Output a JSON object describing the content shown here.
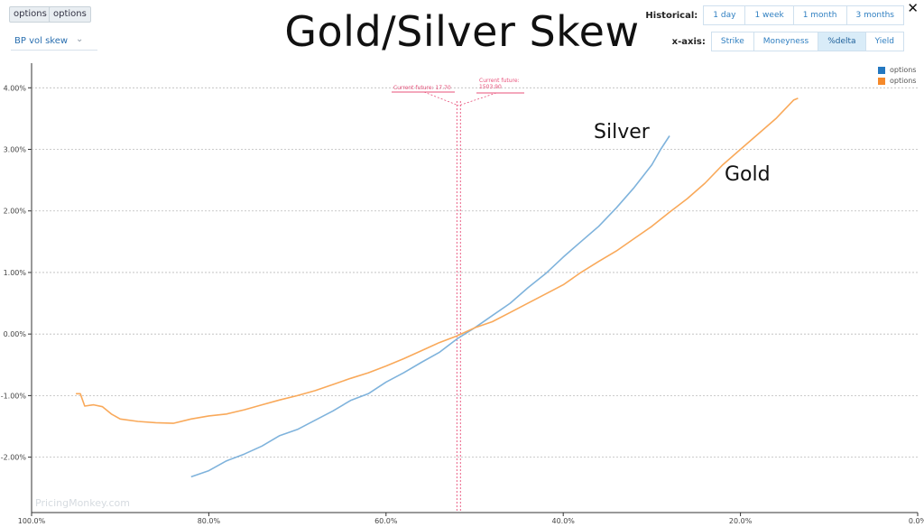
{
  "toolbar": {
    "btn1": "options",
    "btn2": "options",
    "select_value": "BP vol skew"
  },
  "title": "Gold/Silver Skew",
  "historical": {
    "label": "Historical:",
    "options": [
      "1 day",
      "1 week",
      "1 month",
      "3 months"
    ]
  },
  "xaxis_toggle": {
    "label": "x-axis:",
    "options": [
      "Strike",
      "Moneyness",
      "%delta",
      "Yield"
    ],
    "active": "%delta"
  },
  "close": "✕",
  "watermark": "PricingMonkey.com",
  "annotations": {
    "silver": "Silver",
    "gold": "Gold"
  },
  "markers": [
    {
      "label": "Current future: 17.70"
    },
    {
      "label": "Current future: 1503.90"
    }
  ],
  "colors": {
    "series1": "#7fb3dc",
    "series2": "#f9a95a",
    "legend1": "#2478c0",
    "legend2": "#f5892a",
    "marker": "#e8507a"
  },
  "chart_data": {
    "type": "line",
    "title": "Gold/Silver Skew",
    "xlabel": "",
    "ylabel": "",
    "xlim": [
      100,
      0
    ],
    "ylim": [
      -2.9,
      4.4
    ],
    "x_ticks": [
      "100.0%",
      "80.0%",
      "60.0%",
      "40.0%",
      "20.0%",
      "0.0%"
    ],
    "y_ticks": [
      "4.00%",
      "3.00%",
      "2.00%",
      "1.00%",
      "0.00%",
      "-1.00%",
      "-2.00%"
    ],
    "grid": true,
    "legend_position": "top-right",
    "vertical_markers": [
      52.0,
      51.6
    ],
    "series": [
      {
        "name": "options",
        "annotation": "Silver",
        "points": [
          [
            82,
            -2.32
          ],
          [
            80,
            -2.22
          ],
          [
            78,
            -2.06
          ],
          [
            76,
            -1.95
          ],
          [
            74,
            -1.82
          ],
          [
            72,
            -1.65
          ],
          [
            70,
            -1.55
          ],
          [
            68,
            -1.4
          ],
          [
            66,
            -1.25
          ],
          [
            64,
            -1.08
          ],
          [
            62,
            -0.97
          ],
          [
            60,
            -0.78
          ],
          [
            58,
            -0.63
          ],
          [
            56,
            -0.46
          ],
          [
            54,
            -0.3
          ],
          [
            52,
            -0.08
          ],
          [
            50,
            0.1
          ],
          [
            48,
            0.3
          ],
          [
            46,
            0.5
          ],
          [
            44,
            0.75
          ],
          [
            42,
            0.98
          ],
          [
            40,
            1.25
          ],
          [
            38,
            1.5
          ],
          [
            36,
            1.75
          ],
          [
            34,
            2.05
          ],
          [
            32,
            2.38
          ],
          [
            30,
            2.75
          ],
          [
            29,
            3.0
          ],
          [
            28,
            3.22
          ]
        ]
      },
      {
        "name": "options",
        "annotation": "Gold",
        "points": [
          [
            95,
            -0.97
          ],
          [
            94.5,
            -0.97
          ],
          [
            94,
            -1.17
          ],
          [
            93,
            -1.15
          ],
          [
            92,
            -1.18
          ],
          [
            91,
            -1.3
          ],
          [
            90,
            -1.38
          ],
          [
            88,
            -1.42
          ],
          [
            86,
            -1.44
          ],
          [
            84,
            -1.45
          ],
          [
            82,
            -1.38
          ],
          [
            80,
            -1.33
          ],
          [
            78,
            -1.3
          ],
          [
            76,
            -1.23
          ],
          [
            74,
            -1.15
          ],
          [
            72,
            -1.07
          ],
          [
            70,
            -1.0
          ],
          [
            68,
            -0.92
          ],
          [
            66,
            -0.82
          ],
          [
            64,
            -0.72
          ],
          [
            62,
            -0.63
          ],
          [
            60,
            -0.52
          ],
          [
            58,
            -0.4
          ],
          [
            56,
            -0.27
          ],
          [
            54,
            -0.14
          ],
          [
            52,
            -0.03
          ],
          [
            50,
            0.1
          ],
          [
            48,
            0.2
          ],
          [
            46,
            0.35
          ],
          [
            44,
            0.5
          ],
          [
            42,
            0.65
          ],
          [
            40,
            0.8
          ],
          [
            38,
            1.0
          ],
          [
            36,
            1.18
          ],
          [
            34,
            1.35
          ],
          [
            32,
            1.55
          ],
          [
            30,
            1.75
          ],
          [
            28,
            1.98
          ],
          [
            26,
            2.2
          ],
          [
            24,
            2.45
          ],
          [
            22,
            2.75
          ],
          [
            20,
            3.0
          ],
          [
            18,
            3.25
          ],
          [
            16,
            3.5
          ],
          [
            14,
            3.8
          ],
          [
            13.5,
            3.83
          ]
        ]
      }
    ]
  }
}
